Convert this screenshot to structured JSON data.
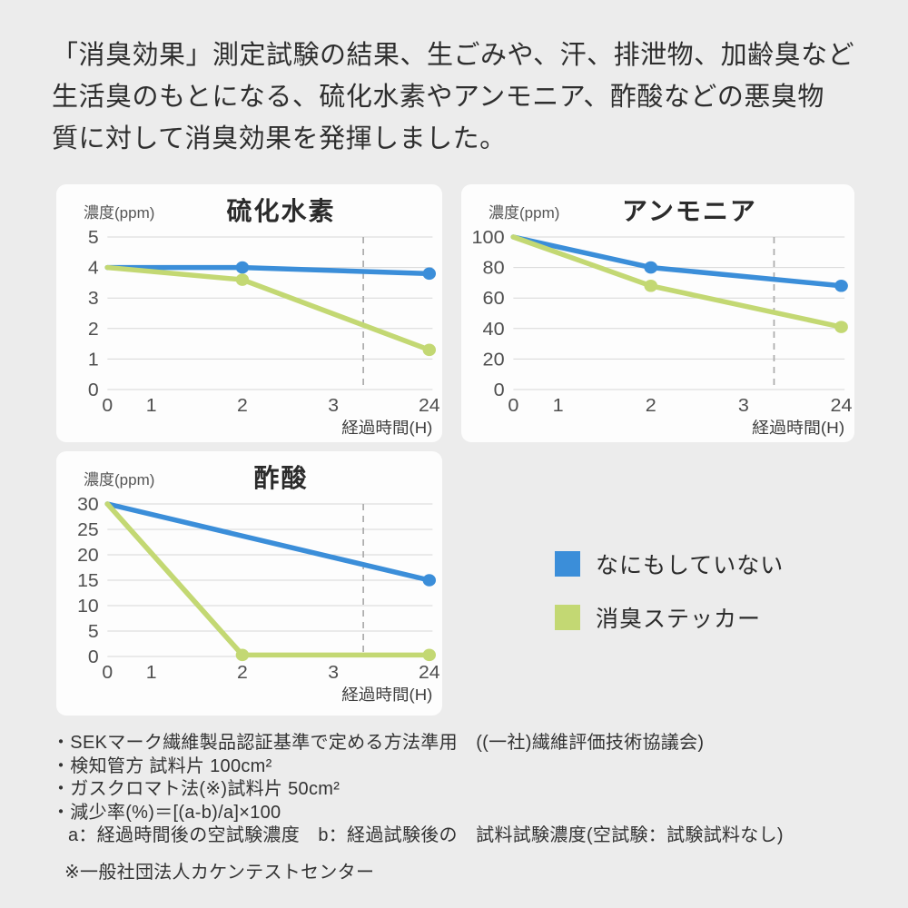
{
  "intro": {
    "lines": [
      "「消臭効果」測定試験の結果、生ごみや、汗、排泄物、加齢臭など",
      "生活臭のもとになる、硫化水素やアンモニア、酢酸などの悪臭物",
      "質に対して消臭効果を発揮しました。"
    ]
  },
  "colors": {
    "background": "#ececec",
    "card": "#fdfdfd",
    "blue": "#3b8ed9",
    "green": "#c3d873",
    "grid": "#d7d7d7",
    "axis_break_dash": "#ababab",
    "axis_text": "#4f4f4f",
    "unit_text": "#3f3f3f"
  },
  "chart_data": [
    {
      "type": "line",
      "title": "硫化水素",
      "y_axis_label": "濃度(ppm)",
      "x_axis_label": "経過時間(H)",
      "y_max": 5,
      "y_ticks": [
        5,
        4,
        3,
        2,
        1,
        0
      ],
      "x_ticks": [
        "0",
        "1",
        "2",
        "3",
        "24"
      ],
      "x_positions": {
        "0": 0,
        "1": 0.135,
        "2": 0.415,
        "3": 0.695,
        "24": 0.99
      },
      "axis_break_line_pos": 0.787,
      "grid": true,
      "series": [
        {
          "name": "なにもしていない",
          "color": "blue",
          "points": [
            {
              "t": "0",
              "v": 4
            },
            {
              "t": "2",
              "v": 4,
              "marker": true
            },
            {
              "t": "24",
              "v": 3.8,
              "marker": true
            }
          ]
        },
        {
          "name": "消臭ステッカー",
          "color": "green",
          "points": [
            {
              "t": "0",
              "v": 4
            },
            {
              "t": "2",
              "v": 3.6,
              "marker": true
            },
            {
              "t": "24",
              "v": 1.3,
              "marker": true
            }
          ]
        }
      ]
    },
    {
      "type": "line",
      "title": "アンモニア",
      "y_axis_label": "濃度(ppm)",
      "x_axis_label": "経過時間(H)",
      "y_max": 100,
      "y_ticks": [
        100,
        80,
        60,
        40,
        20,
        0
      ],
      "x_ticks": [
        "0",
        "1",
        "2",
        "3",
        "24"
      ],
      "x_positions": {
        "0": 0,
        "1": 0.135,
        "2": 0.415,
        "3": 0.695,
        "24": 0.99
      },
      "axis_break_line_pos": 0.787,
      "grid": true,
      "series": [
        {
          "name": "なにもしていない",
          "color": "blue",
          "points": [
            {
              "t": "0",
              "v": 100
            },
            {
              "t": "2",
              "v": 80,
              "marker": true
            },
            {
              "t": "24",
              "v": 68,
              "marker": true
            }
          ]
        },
        {
          "name": "消臭ステッカー",
          "color": "green",
          "points": [
            {
              "t": "0",
              "v": 100
            },
            {
              "t": "2",
              "v": 68,
              "marker": true
            },
            {
              "t": "24",
              "v": 41,
              "marker": true
            }
          ]
        }
      ]
    },
    {
      "type": "line",
      "title": "酢酸",
      "y_axis_label": "濃度(ppm)",
      "x_axis_label": "経過時間(H)",
      "y_max": 30,
      "y_ticks": [
        30,
        25,
        20,
        15,
        10,
        5,
        0
      ],
      "x_ticks": [
        "0",
        "1",
        "2",
        "3",
        "24"
      ],
      "x_positions": {
        "0": 0,
        "1": 0.135,
        "2": 0.415,
        "3": 0.695,
        "24": 0.99
      },
      "axis_break_line_pos": 0.787,
      "grid": true,
      "series": [
        {
          "name": "なにもしていない",
          "color": "blue",
          "points": [
            {
              "t": "0",
              "v": 30
            },
            {
              "t": "24",
              "v": 15,
              "marker": true
            }
          ]
        },
        {
          "name": "消臭ステッカー",
          "color": "green",
          "points": [
            {
              "t": "0",
              "v": 30
            },
            {
              "t": "2",
              "v": 0.3,
              "marker": true
            },
            {
              "t": "24",
              "v": 0.3,
              "marker": true
            }
          ]
        }
      ]
    }
  ],
  "legend": {
    "position": "right-middle",
    "items": [
      {
        "label": "なにもしていない",
        "color": "blue"
      },
      {
        "label": "消臭ステッカー",
        "color": "green"
      }
    ]
  },
  "footnotes": {
    "lines": [
      "・SEKマーク繊維製品認証基準で定める方法準用　((一社)繊維評価技術協議会)",
      "・検知管方 試料片 100cm²",
      "・ガスクロマト法(※)試料片 50cm²",
      "・減少率(%)＝[(a-b)/a]×100",
      "a：経過時間後の空試験濃度　b：経過試験後の　試料試験濃度(空試験：試験試料なし)",
      "※一般社団法人カケンテストセンター"
    ]
  }
}
